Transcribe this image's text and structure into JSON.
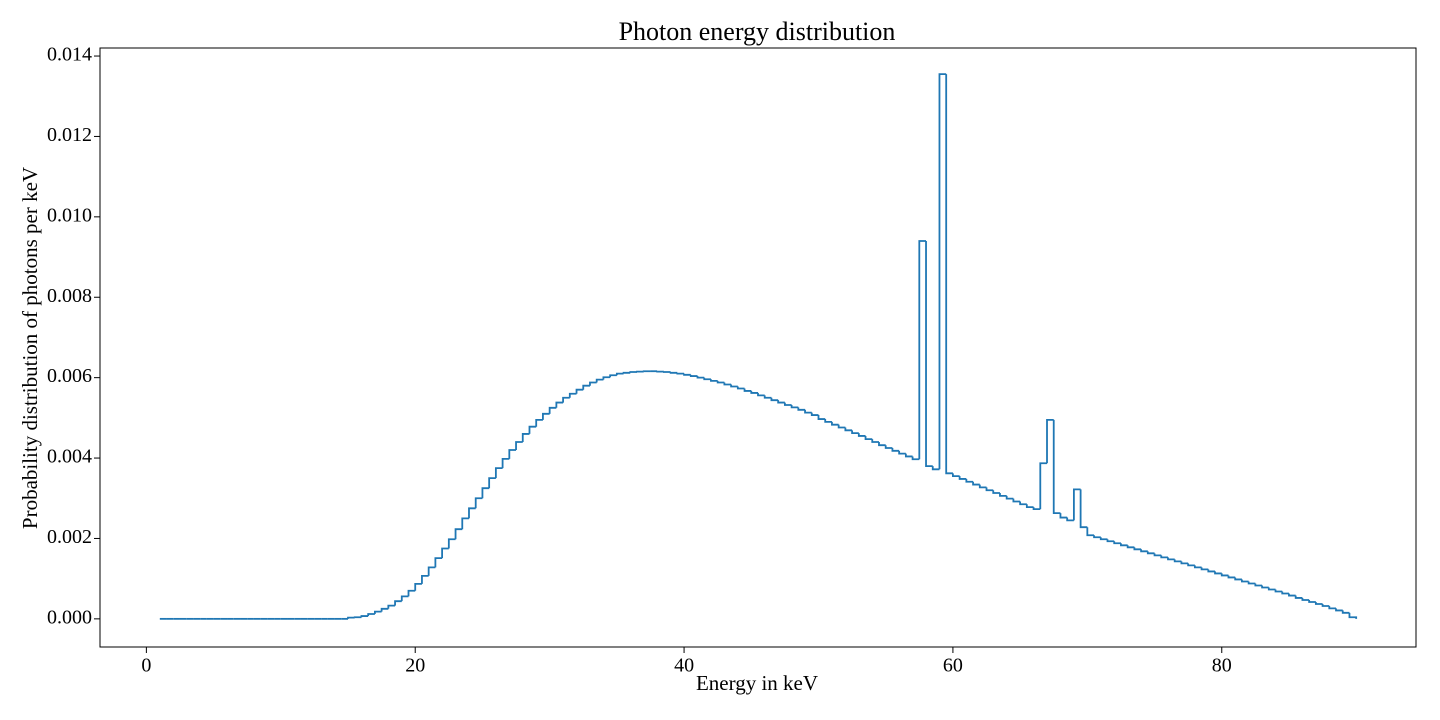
{
  "chart_data": {
    "type": "histogram",
    "title": "Photon energy distribution",
    "x_label": "Energy in keV",
    "y_label": "Probability distribution of photons per keV",
    "color": "#1f77b4",
    "bins": [
      1,
      1.5,
      2,
      2.5,
      3,
      3.5,
      4,
      4.5,
      5,
      5.5,
      6,
      6.5,
      7,
      7.5,
      8,
      8.5,
      9,
      9.5,
      10,
      10.5,
      11,
      11.5,
      12,
      12.5,
      13,
      13.5,
      14,
      14.5,
      15,
      15.5,
      16,
      16.5,
      17,
      17.5,
      18,
      18.5,
      19,
      19.5,
      20,
      20.5,
      21,
      21.5,
      22,
      22.5,
      23,
      23.5,
      24,
      24.5,
      25,
      25.5,
      26,
      26.5,
      27,
      27.5,
      28,
      28.5,
      29,
      29.5,
      30,
      30.5,
      31,
      31.5,
      32,
      32.5,
      33,
      33.5,
      34,
      34.5,
      35,
      35.5,
      36,
      36.5,
      37,
      37.5,
      38,
      38.5,
      39,
      39.5,
      40,
      40.5,
      41,
      41.5,
      42,
      42.5,
      43,
      43.5,
      44,
      44.5,
      45,
      45.5,
      46,
      46.5,
      47,
      47.5,
      48,
      48.5,
      49,
      49.5,
      50,
      50.5,
      51,
      51.5,
      52,
      52.5,
      53,
      53.5,
      54,
      54.5,
      55,
      55.5,
      56,
      56.5,
      57,
      57.5,
      58,
      58.5,
      59,
      59.5,
      60,
      60.5,
      61,
      61.5,
      62,
      62.5,
      63,
      63.5,
      64,
      64.5,
      65,
      65.5,
      66,
      66.5,
      67,
      67.5,
      68,
      68.5,
      69,
      69.5,
      70,
      70.5,
      71,
      71.5,
      72,
      72.5,
      73,
      73.5,
      74,
      74.5,
      75,
      75.5,
      76,
      76.5,
      77,
      77.5,
      78,
      78.5,
      79,
      79.5,
      80,
      80.5,
      81,
      81.5,
      82,
      82.5,
      83,
      83.5,
      84,
      84.5,
      85,
      85.5,
      86,
      86.5,
      87,
      87.5,
      88,
      88.5,
      89,
      89.5,
      90
    ],
    "values": [
      0,
      0,
      0,
      0,
      0,
      0,
      0,
      0,
      0,
      0,
      0,
      0,
      0,
      0,
      0,
      0,
      0,
      0,
      0,
      0,
      0,
      0,
      0,
      0,
      0,
      0,
      0,
      0,
      3e-05,
      4e-05,
      7e-05,
      0.00012,
      0.00018,
      0.00025,
      0.00033,
      0.00044,
      0.00056,
      0.0007,
      0.00087,
      0.00107,
      0.00128,
      0.00151,
      0.00175,
      0.00198,
      0.00223,
      0.0025,
      0.00275,
      0.003,
      0.00325,
      0.0035,
      0.00375,
      0.00398,
      0.0042,
      0.0044,
      0.0046,
      0.00478,
      0.00495,
      0.0051,
      0.00525,
      0.00538,
      0.0055,
      0.0056,
      0.0057,
      0.0058,
      0.00588,
      0.00595,
      0.00601,
      0.00606,
      0.0061,
      0.00612,
      0.00614,
      0.00615,
      0.00616,
      0.00616,
      0.00615,
      0.00614,
      0.00612,
      0.0061,
      0.00607,
      0.00604,
      0.006,
      0.00596,
      0.00592,
      0.00588,
      0.00583,
      0.00578,
      0.00573,
      0.00567,
      0.00562,
      0.00556,
      0.0055,
      0.00544,
      0.00538,
      0.00532,
      0.00526,
      0.0052,
      0.00513,
      0.00507,
      0.00497,
      0.0049,
      0.00483,
      0.00476,
      0.00469,
      0.00462,
      0.00455,
      0.00447,
      0.0044,
      0.00432,
      0.00425,
      0.00418,
      0.00411,
      0.00404,
      0.00397,
      0.0094,
      0.0038,
      0.00372,
      0.01355,
      0.00362,
      0.00355,
      0.00348,
      0.00341,
      0.00334,
      0.00327,
      0.0032,
      0.00313,
      0.00306,
      0.00299,
      0.00292,
      0.00285,
      0.00278,
      0.00273,
      0.00387,
      0.00495,
      0.00263,
      0.00252,
      0.00245,
      0.00322,
      0.00228,
      0.00208,
      0.00203,
      0.00198,
      0.00193,
      0.00188,
      0.00183,
      0.00178,
      0.00173,
      0.00168,
      0.00163,
      0.00158,
      0.00153,
      0.00148,
      0.00143,
      0.00138,
      0.00133,
      0.00128,
      0.00123,
      0.00118,
      0.00113,
      0.00108,
      0.00103,
      0.00098,
      0.00093,
      0.00088,
      0.00083,
      0.00078,
      0.00073,
      0.00068,
      0.00063,
      0.00058,
      0.00052,
      0.00047,
      0.00042,
      0.00037,
      0.00032,
      0.00026,
      0.00021,
      0.00015,
      4e-05
    ],
    "xlim": [
      -3.45,
      94.45
    ],
    "xticks": [
      0,
      20,
      40,
      60,
      80
    ],
    "ylim": [
      -0.0007,
      0.0142
    ],
    "yticks": [
      {
        "value": 0,
        "label": "0.000"
      },
      {
        "value": 0.002,
        "label": "0.002"
      },
      {
        "value": 0.004,
        "label": "0.004"
      },
      {
        "value": 0.006,
        "label": "0.006"
      },
      {
        "value": 0.008,
        "label": "0.008"
      },
      {
        "value": 0.01,
        "label": "0.010"
      },
      {
        "value": 0.012,
        "label": "0.012"
      },
      {
        "value": 0.014,
        "label": "0.014"
      }
    ],
    "grid": false
  }
}
